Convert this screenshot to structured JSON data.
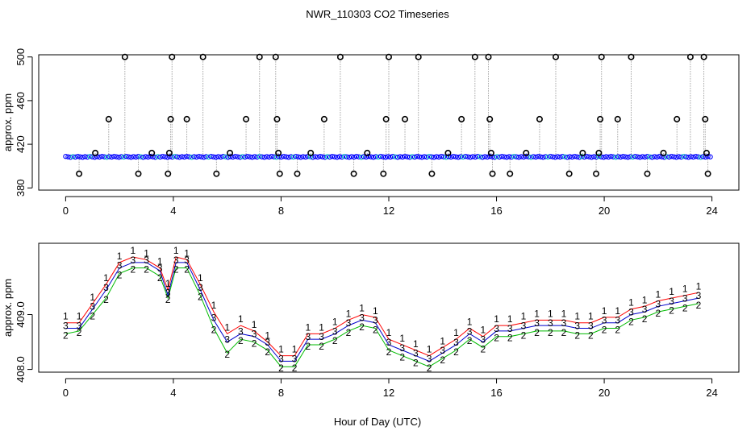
{
  "title": "NWR_110303  CO2 Timeseries",
  "xlabel": "Hour of Day (UTC)",
  "chart_data": [
    {
      "type": "scatter",
      "panel": "top",
      "ylabel": "approx. ppm",
      "xlim": [
        -1,
        25
      ],
      "ylim": [
        378,
        502
      ],
      "xticks": [
        0,
        4,
        8,
        12,
        16,
        20,
        24
      ],
      "yticks": [
        380,
        420,
        460,
        500
      ],
      "baseline_ppm": 408.5,
      "baseline_colors": [
        "#0000ff",
        "#00bfbf"
      ],
      "outlier_color": "#000000",
      "outliers": [
        {
          "x": 0.5,
          "y": 393
        },
        {
          "x": 1.1,
          "y": 412
        },
        {
          "x": 1.6,
          "y": 443
        },
        {
          "x": 2.2,
          "y": 500
        },
        {
          "x": 2.7,
          "y": 393
        },
        {
          "x": 3.2,
          "y": 412
        },
        {
          "x": 3.8,
          "y": 393
        },
        {
          "x": 3.85,
          "y": 412
        },
        {
          "x": 3.9,
          "y": 443
        },
        {
          "x": 3.95,
          "y": 500
        },
        {
          "x": 4.5,
          "y": 443
        },
        {
          "x": 5.1,
          "y": 500
        },
        {
          "x": 5.6,
          "y": 393
        },
        {
          "x": 6.1,
          "y": 412
        },
        {
          "x": 6.7,
          "y": 443
        },
        {
          "x": 7.2,
          "y": 500
        },
        {
          "x": 7.8,
          "y": 500
        },
        {
          "x": 7.85,
          "y": 443
        },
        {
          "x": 7.9,
          "y": 412
        },
        {
          "x": 7.95,
          "y": 393
        },
        {
          "x": 8.6,
          "y": 393
        },
        {
          "x": 9.1,
          "y": 412
        },
        {
          "x": 9.6,
          "y": 443
        },
        {
          "x": 10.2,
          "y": 500
        },
        {
          "x": 10.7,
          "y": 393
        },
        {
          "x": 11.2,
          "y": 412
        },
        {
          "x": 11.8,
          "y": 393
        },
        {
          "x": 11.9,
          "y": 443
        },
        {
          "x": 12.0,
          "y": 500
        },
        {
          "x": 12.6,
          "y": 443
        },
        {
          "x": 13.1,
          "y": 500
        },
        {
          "x": 13.6,
          "y": 393
        },
        {
          "x": 14.2,
          "y": 412
        },
        {
          "x": 14.7,
          "y": 443
        },
        {
          "x": 15.2,
          "y": 500
        },
        {
          "x": 15.7,
          "y": 500
        },
        {
          "x": 15.75,
          "y": 443
        },
        {
          "x": 15.8,
          "y": 412
        },
        {
          "x": 15.85,
          "y": 393
        },
        {
          "x": 16.5,
          "y": 393
        },
        {
          "x": 17.1,
          "y": 412
        },
        {
          "x": 17.6,
          "y": 443
        },
        {
          "x": 18.2,
          "y": 500
        },
        {
          "x": 18.7,
          "y": 393
        },
        {
          "x": 19.2,
          "y": 412
        },
        {
          "x": 19.7,
          "y": 393
        },
        {
          "x": 19.8,
          "y": 412
        },
        {
          "x": 19.85,
          "y": 443
        },
        {
          "x": 19.9,
          "y": 500
        },
        {
          "x": 20.5,
          "y": 443
        },
        {
          "x": 21.0,
          "y": 500
        },
        {
          "x": 21.6,
          "y": 393
        },
        {
          "x": 22.2,
          "y": 412
        },
        {
          "x": 22.7,
          "y": 443
        },
        {
          "x": 23.2,
          "y": 500
        },
        {
          "x": 23.7,
          "y": 500
        },
        {
          "x": 23.75,
          "y": 443
        },
        {
          "x": 23.8,
          "y": 412
        },
        {
          "x": 23.85,
          "y": 393
        }
      ]
    },
    {
      "type": "line",
      "panel": "bottom",
      "ylabel": "approx. ppm",
      "xlim": [
        -1,
        25
      ],
      "ylim": [
        407.95,
        410.3
      ],
      "xticks": [
        0,
        4,
        8,
        12,
        16,
        20,
        24
      ],
      "yticks": [
        408.0,
        409.0
      ],
      "ytick_labels": [
        "408.0",
        "409.0"
      ],
      "x": [
        0.0,
        0.5,
        1.0,
        1.5,
        2.0,
        2.5,
        3.0,
        3.5,
        3.8,
        4.1,
        4.5,
        5.0,
        5.5,
        6.0,
        6.5,
        7.0,
        7.5,
        8.0,
        8.5,
        9.0,
        9.5,
        10.0,
        10.5,
        11.0,
        11.5,
        12.0,
        12.5,
        13.0,
        13.5,
        14.0,
        14.5,
        15.0,
        15.5,
        16.0,
        16.5,
        17.0,
        17.5,
        18.0,
        18.5,
        19.0,
        19.5,
        20.0,
        20.5,
        21.0,
        21.5,
        22.0,
        22.5,
        23.0,
        23.5
      ],
      "series": [
        {
          "name": "1",
          "color": "#ff0000",
          "values": [
            408.85,
            408.85,
            409.2,
            409.55,
            409.95,
            410.05,
            410.0,
            409.85,
            409.45,
            410.05,
            410.0,
            409.55,
            409.05,
            408.65,
            408.8,
            408.7,
            408.5,
            408.25,
            408.25,
            408.65,
            408.65,
            408.75,
            408.9,
            409.0,
            408.95,
            408.55,
            408.45,
            408.35,
            408.25,
            408.4,
            408.55,
            408.75,
            408.6,
            408.8,
            408.8,
            408.85,
            408.9,
            408.9,
            408.9,
            408.85,
            408.85,
            408.95,
            408.95,
            409.1,
            409.15,
            409.25,
            409.3,
            409.35,
            409.4
          ]
        },
        {
          "name": "2",
          "color": "#00bb00",
          "values": [
            408.65,
            408.7,
            409.0,
            409.3,
            409.75,
            409.85,
            409.85,
            409.7,
            409.3,
            409.85,
            409.85,
            409.35,
            408.75,
            408.3,
            408.55,
            408.5,
            408.35,
            408.05,
            408.05,
            408.45,
            408.45,
            408.55,
            408.7,
            408.8,
            408.75,
            408.35,
            408.25,
            408.15,
            408.05,
            408.2,
            408.35,
            408.55,
            408.4,
            408.6,
            408.6,
            408.65,
            408.7,
            408.7,
            408.7,
            408.65,
            408.65,
            408.75,
            408.75,
            408.9,
            408.95,
            409.05,
            409.1,
            409.15,
            409.2
          ]
        },
        {
          "name": "3",
          "color": "#0000cc",
          "values": [
            408.75,
            408.75,
            409.1,
            409.45,
            409.85,
            409.95,
            409.95,
            409.8,
            409.35,
            409.95,
            409.95,
            409.45,
            408.9,
            408.5,
            408.65,
            408.6,
            408.45,
            408.15,
            408.15,
            408.55,
            408.55,
            408.65,
            408.8,
            408.9,
            408.85,
            408.45,
            408.35,
            408.25,
            408.15,
            408.3,
            408.45,
            408.65,
            408.5,
            408.7,
            408.7,
            408.75,
            408.8,
            408.8,
            408.8,
            408.75,
            408.75,
            408.85,
            408.85,
            409.0,
            409.05,
            409.15,
            409.2,
            409.25,
            409.3
          ]
        }
      ]
    }
  ]
}
